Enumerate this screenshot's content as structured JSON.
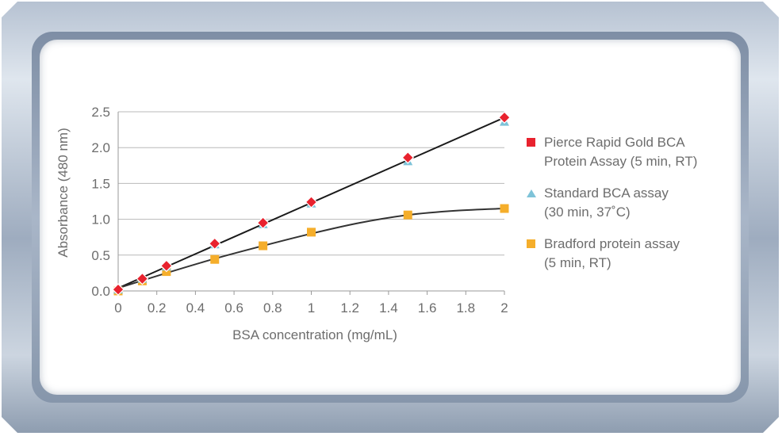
{
  "chart_data": {
    "type": "scatter",
    "xlabel": "BSA concentration (mg/mL)",
    "ylabel": "Absorbance (480 nm)",
    "xlim": [
      0,
      2
    ],
    "ylim": [
      0,
      2.5
    ],
    "x_ticks": [
      0,
      0.2,
      0.4,
      0.6,
      0.8,
      1,
      1.2,
      1.4,
      1.6,
      1.8,
      2
    ],
    "y_ticks": [
      0.0,
      0.5,
      1.0,
      1.5,
      2.0,
      2.5
    ],
    "x_tick_labels": [
      "0",
      "0.2",
      "0.4",
      "0.6",
      "0.8",
      "1",
      "1.2",
      "1.4",
      "1.6",
      "1.8",
      "2"
    ],
    "y_tick_labels": [
      "0.0",
      "0.5",
      "1.0",
      "1.5",
      "2.0",
      "2.5"
    ],
    "grid": "horizontal",
    "legend_position": "right",
    "series": [
      {
        "name": "Pierce Rapid Gold BCA Protein Assay (5 min, RT)",
        "label_lines": [
          "Pierce Rapid Gold BCA",
          "Protein Assay (5 min, RT)"
        ],
        "marker": "diamond",
        "color": "#e8222e",
        "x": [
          0,
          0.125,
          0.25,
          0.5,
          0.75,
          1,
          1.5,
          2
        ],
        "y": [
          0.02,
          0.17,
          0.35,
          0.66,
          0.95,
          1.24,
          1.86,
          2.42
        ]
      },
      {
        "name": "Standard BCA assay (30 min, 37˚C)",
        "label_lines": [
          "Standard BCA assay",
          "(30 min, 37˚C)"
        ],
        "marker": "triangle",
        "color": "#7ec3d8",
        "x": [
          0,
          0.125,
          0.25,
          0.5,
          0.75,
          1,
          1.5,
          2
        ],
        "y": [
          0.02,
          0.17,
          0.34,
          0.65,
          0.93,
          1.22,
          1.81,
          2.36
        ]
      },
      {
        "name": "Bradford protein assay (5 min, RT)",
        "label_lines": [
          "Bradford protein assay",
          "(5 min, RT)"
        ],
        "marker": "square",
        "color": "#f5ae2b",
        "x": [
          0,
          0.125,
          0.25,
          0.5,
          0.75,
          1,
          1.5,
          2
        ],
        "y": [
          0.0,
          0.14,
          0.27,
          0.44,
          0.63,
          0.82,
          1.06,
          1.15
        ]
      }
    ],
    "trendlines": [
      {
        "kind": "linear",
        "x": [
          0,
          2
        ],
        "y": [
          0.04,
          2.42
        ],
        "color": "#1a1a1a"
      },
      {
        "kind": "curve",
        "x": [
          0,
          0.25,
          0.5,
          0.75,
          1,
          1.25,
          1.5,
          1.75,
          2
        ],
        "y": [
          0.04,
          0.25,
          0.45,
          0.63,
          0.8,
          0.95,
          1.06,
          1.12,
          1.15
        ],
        "color": "#333333"
      }
    ]
  }
}
